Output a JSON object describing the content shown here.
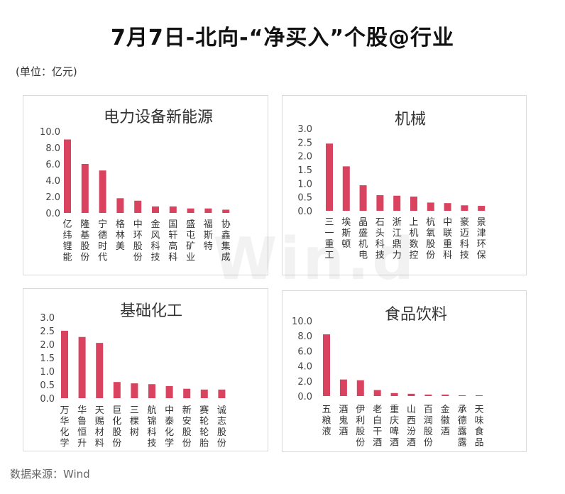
{
  "title": "7月7日-北向-“净买入”个股@行业",
  "unit": "(单位：亿元)",
  "source": "数据来源：Wind",
  "watermark": "Win.d",
  "colors": {
    "bar": "#d9435f",
    "axis_text": "#444444",
    "label_text": "#333333"
  },
  "chart_data": [
    {
      "type": "bar",
      "title": "电力设备新能源",
      "categories": [
        "亿纬锂能",
        "隆基股份",
        "宁德时代",
        "格林美",
        "中环股份",
        "金风科技",
        "国轩高科",
        "盛屯矿业",
        "福斯特",
        "协鑫集成"
      ],
      "values": [
        9.0,
        6.0,
        5.2,
        1.8,
        1.5,
        0.8,
        0.8,
        0.55,
        0.55,
        0.4
      ],
      "yticks": [
        "0.0",
        "2.0",
        "4.0",
        "6.0",
        "8.0",
        "10.0"
      ],
      "ylim": [
        0,
        10
      ],
      "grid": false,
      "legend": "none"
    },
    {
      "type": "bar",
      "title": "机械",
      "categories": [
        "三一重工",
        "埃斯顿",
        "晶盛机电",
        "石头科技",
        "浙江鼎力",
        "上机数控",
        "杭氧股份",
        "中联重科",
        "豪迈科技",
        "景津环保"
      ],
      "values": [
        2.45,
        1.62,
        0.93,
        0.57,
        0.55,
        0.52,
        0.3,
        0.28,
        0.2,
        0.18
      ],
      "yticks": [
        "0.0",
        "0.5",
        "1.0",
        "1.5",
        "2.0",
        "2.5",
        "3.0"
      ],
      "ylim": [
        0,
        3
      ],
      "grid": false,
      "legend": "none"
    },
    {
      "type": "bar",
      "title": "基础化工",
      "categories": [
        "万华化学",
        "华鲁恒升",
        "天赐材料",
        "巨化股份",
        "三棵树",
        "航锦科技",
        "中泰化学",
        "新安股份",
        "赛轮轮胎",
        "诚志股份"
      ],
      "values": [
        2.5,
        2.27,
        2.05,
        0.6,
        0.55,
        0.52,
        0.45,
        0.35,
        0.32,
        0.32
      ],
      "yticks": [
        "0.0",
        "0.5",
        "1.0",
        "1.5",
        "2.0",
        "2.5",
        "3.0"
      ],
      "ylim": [
        0,
        3
      ],
      "grid": false,
      "legend": "none"
    },
    {
      "type": "bar",
      "title": "食品饮料",
      "categories": [
        "五粮液",
        "酒鬼酒",
        "伊利股份",
        "老白干酒",
        "重庆啤酒",
        "山西汾酒",
        "百润股份",
        "金徽酒",
        "承德露露",
        "天味食品"
      ],
      "values": [
        8.2,
        2.2,
        2.1,
        0.8,
        0.4,
        0.3,
        0.2,
        0.2,
        0.1,
        0.1
      ],
      "yticks": [
        "0.0",
        "2.0",
        "4.0",
        "6.0",
        "8.0",
        "10.0"
      ],
      "ylim": [
        0,
        10
      ],
      "grid": false,
      "legend": "none"
    }
  ]
}
